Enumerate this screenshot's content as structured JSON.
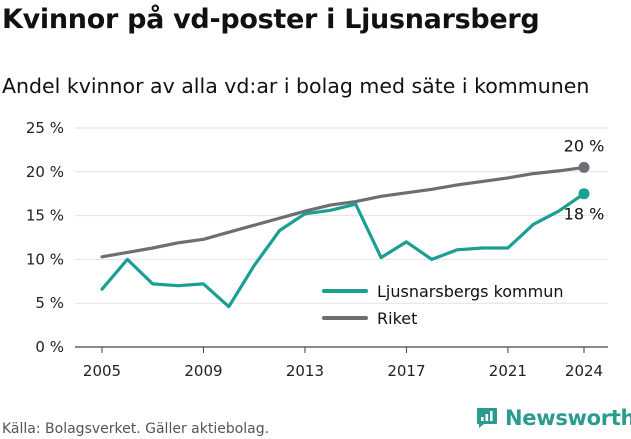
{
  "header": {
    "title": "Kvinnor på vd-poster i Ljusnarsberg",
    "subtitle": "Andel kvinnor av alla vd:ar i bolag med säte i kommunen"
  },
  "footer": {
    "source": "Källa: Bolagsverket. Gäller aktiebolag.",
    "brand": "Newsworthy"
  },
  "colors": {
    "kommun": "#1a9f91",
    "riket": "#6e6d73",
    "grid": "#e2e2e2",
    "axis": "#444444",
    "brand": "#2a9c8f"
  },
  "chart_data": {
    "type": "line",
    "title": "Kvinnor på vd-poster i Ljusnarsberg",
    "subtitle": "Andel kvinnor av alla vd:ar i bolag med säte i kommunen",
    "x": [
      2005,
      2006,
      2007,
      2008,
      2009,
      2010,
      2011,
      2012,
      2013,
      2014,
      2015,
      2016,
      2017,
      2018,
      2019,
      2020,
      2021,
      2022,
      2023,
      2024
    ],
    "x_ticks": [
      "2005",
      "2009",
      "2013",
      "2017",
      "2021",
      "2024"
    ],
    "y_ticks": [
      "0 %",
      "5 %",
      "10 %",
      "15 %",
      "20 %",
      "25 %"
    ],
    "ylim": [
      0,
      25
    ],
    "grid": "horizontal",
    "legend_position": "bottom-right",
    "series": [
      {
        "name": "Ljusnarsbergs kommun",
        "color": "#1a9f91",
        "values": [
          6.6,
          10.0,
          7.2,
          7.0,
          7.2,
          4.6,
          9.3,
          13.3,
          15.2,
          15.6,
          16.3,
          10.2,
          12.0,
          10.0,
          11.1,
          11.3,
          11.3,
          14.0,
          15.5,
          17.5
        ],
        "end_label": "18 %"
      },
      {
        "name": "Riket",
        "color": "#6e6d73",
        "values": [
          10.3,
          10.8,
          11.3,
          11.9,
          12.3,
          13.1,
          13.9,
          14.7,
          15.5,
          16.2,
          16.6,
          17.2,
          17.6,
          18.0,
          18.5,
          18.9,
          19.3,
          19.8,
          20.1,
          20.5
        ],
        "end_label": "20 %"
      }
    ]
  }
}
